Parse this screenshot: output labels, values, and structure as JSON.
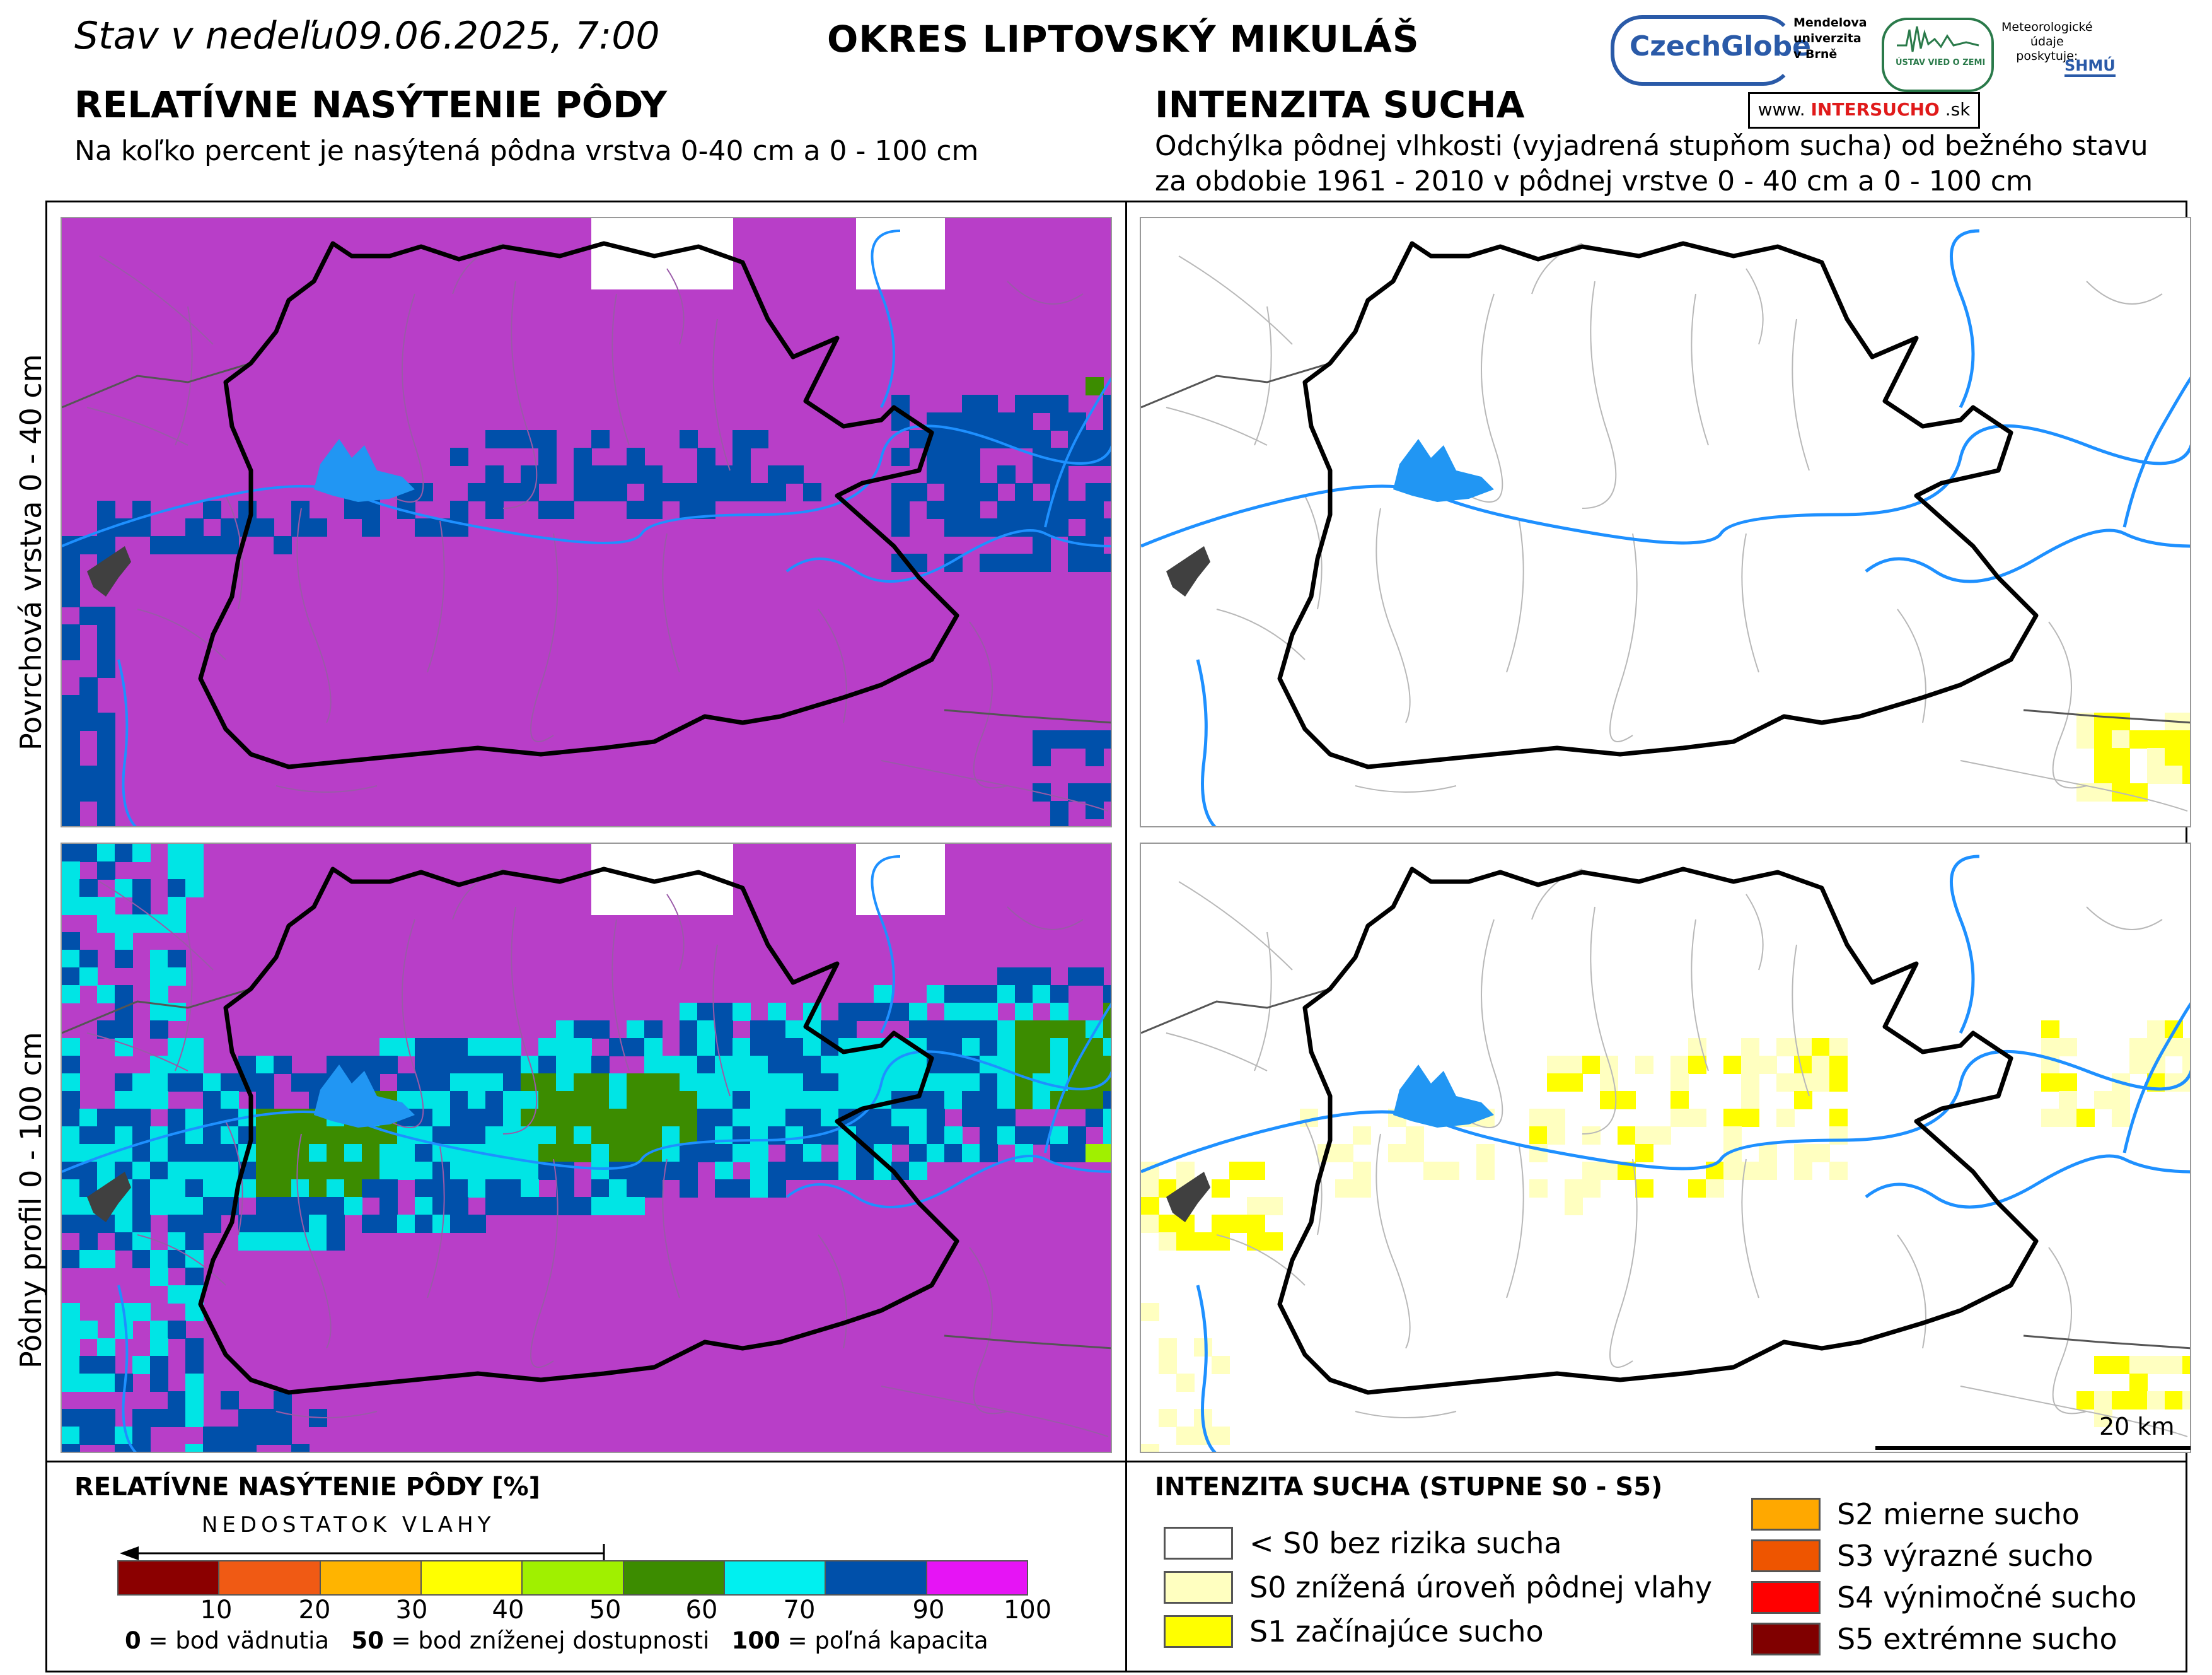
{
  "header": {
    "date": "Stav v nedeľu09.06.2025, 7:00",
    "district": "OKRES  LIPTOVSKÝ MIKULÁŠ"
  },
  "left_section": {
    "title": "RELATÍVNE NASÝTENIE PÔDY",
    "subtitle": "Na koľko percent je nasýtená pôdna vrstva 0-40 cm a 0 - 100 cm"
  },
  "right_section": {
    "title": "INTENZITA SUCHA",
    "subtitle_line1": "Odchýlka pôdnej vlhkosti (vyjadrená stupňom sucha) od bežného stavu",
    "subtitle_line2": "za obdobie 1961 - 2010 v pôdnej vrstve 0 - 40 cm a 0 - 100 cm"
  },
  "logos": {
    "czechglobe": "CzechGlobe",
    "mendel": [
      "Mendelova",
      "univerzita",
      "v Brně"
    ],
    "ustav": "ÚSTAV VIED O ZEMI",
    "meteo": [
      "Meteorologické",
      "údaje",
      "poskytuje:"
    ],
    "shmu": "SHMÚ",
    "intersucho_prefix": "www.",
    "intersucho_main": "INTERSUCHO",
    "intersucho_suffix": ".sk"
  },
  "row_labels": {
    "top": "Povrchová vrstva 0 - 40 cm",
    "bottom": "Pôdny profil 0 - 100 cm"
  },
  "scale": {
    "label": "20 km"
  },
  "legend_saturation": {
    "title": "RELATÍVNE NASÝTENIE PÔDY [%]",
    "arrow_label": "NEDOSTATOK VLAHY",
    "ticks": [
      "10",
      "20",
      "30",
      "40",
      "50",
      "60",
      "70",
      "90",
      "100"
    ],
    "colors": [
      "#8b0000",
      "#f05a14",
      "#ffb400",
      "#ffff00",
      "#a0f000",
      "#3c8c00",
      "#00f0f0",
      "#0050aa",
      "#e614f5"
    ],
    "footnote": {
      "v0": "0",
      "t0": " = bod vädnutia",
      "v50": "50",
      "t50": " = bod zníženej dostupnosti",
      "v100": "100",
      "t100": " = poľná kapacita"
    }
  },
  "legend_drought": {
    "title": "INTENZITA SUCHA (STUPNE S0 - S5)",
    "items": [
      {
        "label": "< S0 bez rizika sucha",
        "color": "#ffffff"
      },
      {
        "label": "S0 znížená úroveň pôdnej vlahy",
        "color": "#ffffc0"
      },
      {
        "label": "S1 začínajúce sucho",
        "color": "#ffff00"
      },
      {
        "label": "S2 mierne sucho",
        "color": "#ffa800"
      },
      {
        "label": "S3 výrazné sucho",
        "color": "#ee5500"
      },
      {
        "label": "S4 výnimočné sucho",
        "color": "#ff0000"
      },
      {
        "label": "S5 extrémne sucho",
        "color": "#800000"
      }
    ]
  },
  "map_colors": {
    "saturation_high": "#b83ec8",
    "saturation_mid": "#0050aa",
    "cyan": "#00e5e5",
    "green": "#3c8c00",
    "lime": "#a0f000",
    "water": "#1e90ff",
    "lake": "#2196f3",
    "dark_lake": "#404040",
    "drought_s0": "#ffffc0",
    "drought_s1": "#ffff00"
  }
}
